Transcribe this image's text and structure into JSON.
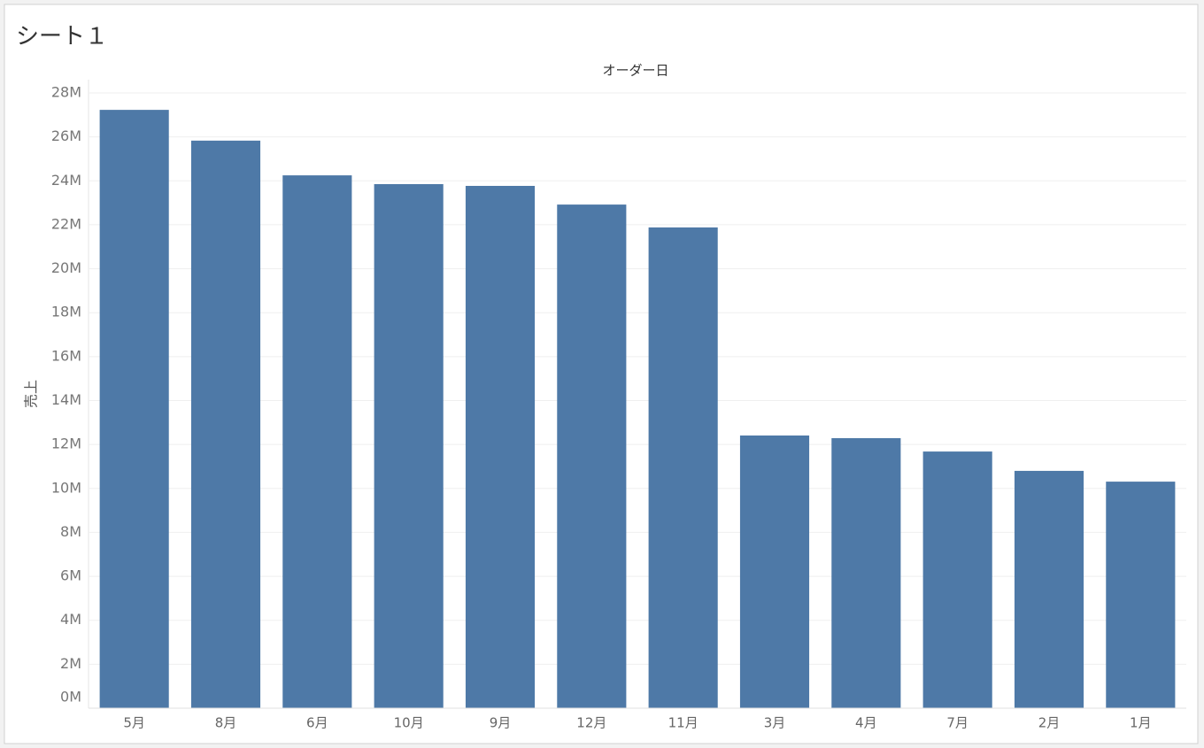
{
  "chart_data": {
    "type": "bar",
    "title": "シート１",
    "x_header": "オーダー日",
    "y_label": "売上",
    "categories": [
      "5月",
      "8月",
      "6月",
      "10月",
      "9月",
      "12月",
      "11月",
      "3月",
      "4月",
      "7月",
      "2月",
      "1月"
    ],
    "values": [
      27230000,
      25830000,
      24250000,
      23850000,
      23770000,
      22920000,
      21880000,
      12410000,
      12290000,
      11680000,
      10800000,
      10310000
    ],
    "color": "#4e79a7",
    "ylim": [
      0,
      28000000
    ],
    "yticks": [
      {
        "value": 0,
        "label": "0M"
      },
      {
        "value": 2000000,
        "label": "2M"
      },
      {
        "value": 4000000,
        "label": "4M"
      },
      {
        "value": 6000000,
        "label": "6M"
      },
      {
        "value": 8000000,
        "label": "8M"
      },
      {
        "value": 10000000,
        "label": "10M"
      },
      {
        "value": 12000000,
        "label": "12M"
      },
      {
        "value": 14000000,
        "label": "14M"
      },
      {
        "value": 16000000,
        "label": "16M"
      },
      {
        "value": 18000000,
        "label": "18M"
      },
      {
        "value": 20000000,
        "label": "20M"
      },
      {
        "value": 22000000,
        "label": "22M"
      },
      {
        "value": 24000000,
        "label": "24M"
      },
      {
        "value": 26000000,
        "label": "26M"
      },
      {
        "value": 28000000,
        "label": "28M"
      }
    ],
    "grid": true
  }
}
